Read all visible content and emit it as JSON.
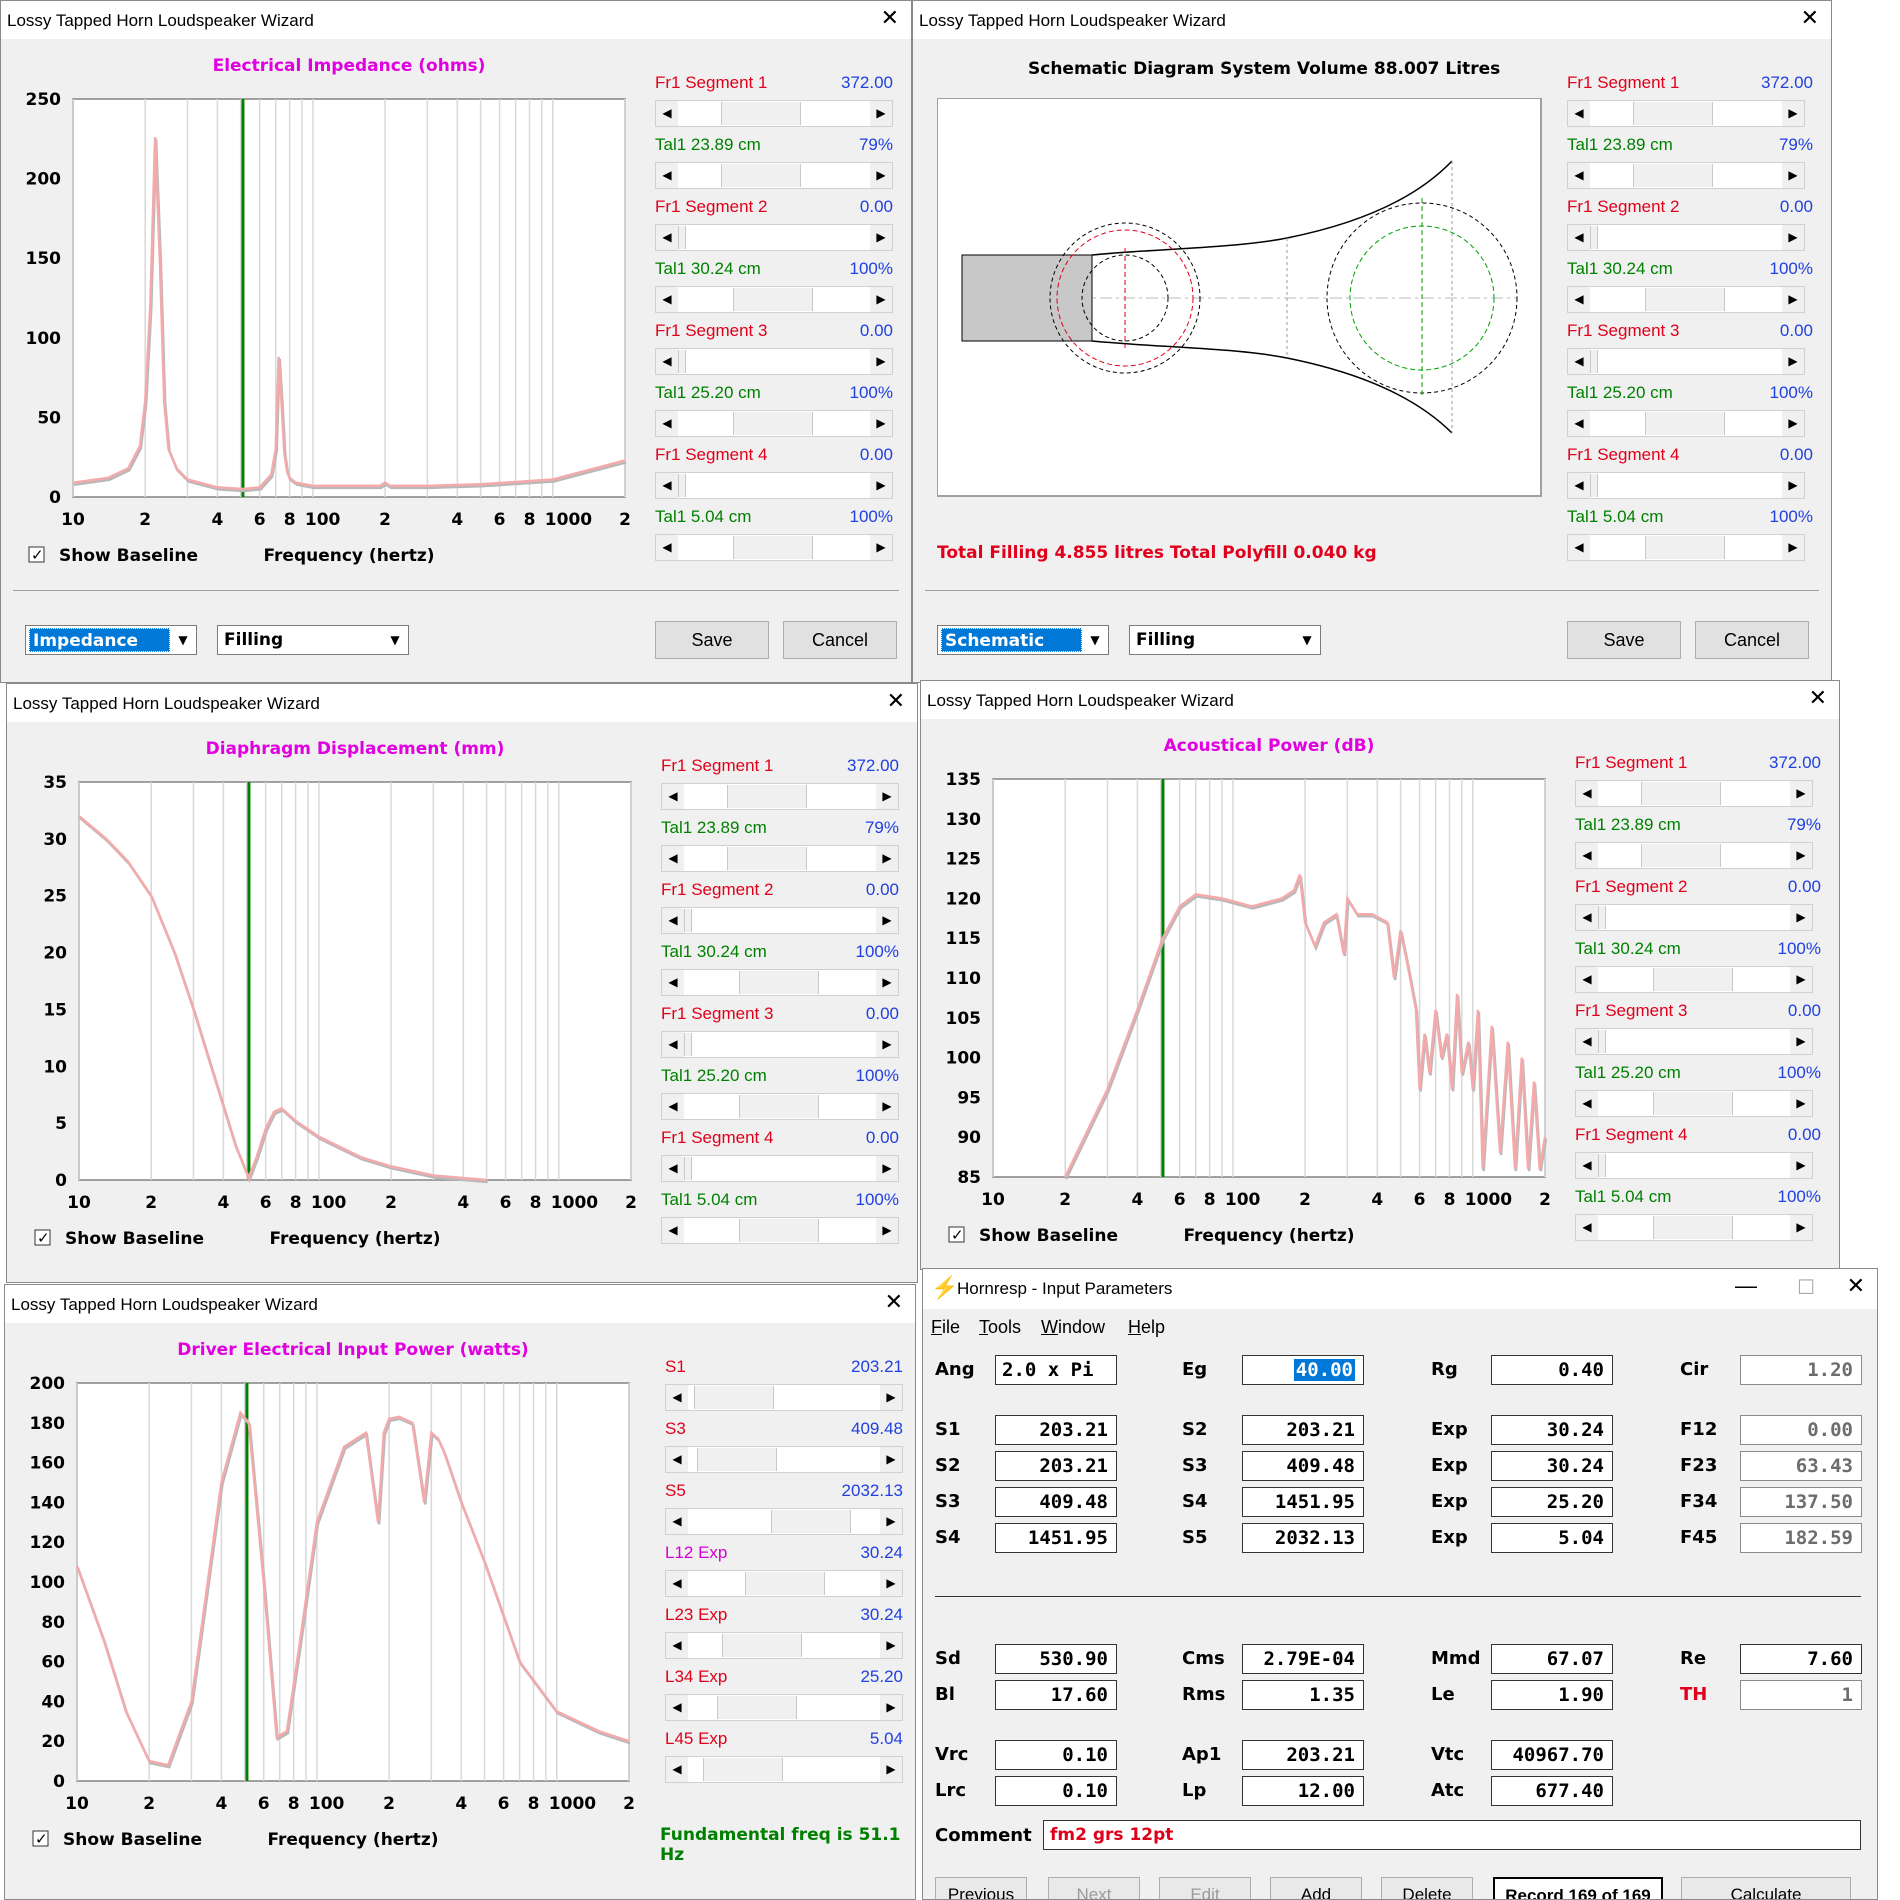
{
  "wizard_title": "Lossy Tapped Horn Loudspeaker Wizard",
  "show_baseline": "Show Baseline",
  "xlabel": "Frequency (hertz)",
  "xticks": [
    "10",
    "2",
    "4",
    "6",
    "8",
    "100",
    "2",
    "4",
    "6",
    "8",
    "1000",
    "2"
  ],
  "save": "Save",
  "cancel": "Cancel",
  "filling": "Filling",
  "segments": [
    {
      "label": "Fr1  Segment 1",
      "value": "372.00",
      "thumb": 0.38
    },
    {
      "label": "Tal1  23.89 cm",
      "value": "79%",
      "thumb": 0.38
    },
    {
      "label": "Fr1  Segment 2",
      "value": "0.00",
      "thumb": 0.0
    },
    {
      "label": "Tal1  30.24 cm",
      "value": "100%",
      "thumb": 0.48
    },
    {
      "label": "Fr1  Segment 3",
      "value": "0.00",
      "thumb": 0.0
    },
    {
      "label": "Tal1  25.20 cm",
      "value": "100%",
      "thumb": 0.48
    },
    {
      "label": "Fr1  Segment 4",
      "value": "0.00",
      "thumb": 0.0
    },
    {
      "label": "Tal1  5.04 cm",
      "value": "100%",
      "thumb": 0.48
    }
  ],
  "impedance": {
    "mode": "Impedance",
    "chart_data": {
      "type": "line",
      "title": "Electrical Impedance (ohms)",
      "xlabel": "Frequency (hertz)",
      "ylim": [
        0,
        250
      ],
      "yticks": [
        250,
        200,
        150,
        100,
        50,
        0
      ],
      "x_scale": "log",
      "xlim": [
        10,
        2000
      ],
      "marker_hz": 51.1,
      "series": [
        {
          "x": [
            10,
            14,
            17,
            19,
            20,
            21,
            22,
            23,
            24,
            25,
            27,
            30,
            40,
            51,
            60,
            67,
            70,
            72,
            74,
            76,
            78,
            80,
            85,
            100,
            150,
            190,
            200,
            210,
            300,
            500,
            1000,
            2000
          ],
          "y": [
            9,
            12,
            18,
            32,
            60,
            120,
            226,
            150,
            60,
            30,
            18,
            11,
            6,
            5,
            6,
            14,
            30,
            88,
            60,
            28,
            16,
            12,
            9,
            7,
            7,
            7,
            9,
            7,
            7,
            8,
            11,
            23
          ]
        }
      ]
    }
  },
  "schematic": {
    "mode": "Schematic",
    "title": "Schematic Diagram   System Volume 88.007 Litres",
    "filling_text": "Total Filling  4.855 litres   Total Polyfill  0.040 kg"
  },
  "displacement": {
    "chart_data": {
      "type": "line",
      "title": "Diaphragm Displacement (mm)",
      "xlabel": "Frequency (hertz)",
      "ylim": [
        0,
        35
      ],
      "yticks": [
        35,
        30,
        25,
        20,
        15,
        10,
        5,
        0
      ],
      "x_scale": "log",
      "xlim": [
        10,
        2000
      ],
      "marker_hz": 51.1,
      "series": [
        {
          "x": [
            10,
            13,
            16,
            20,
            25,
            30,
            38,
            45,
            51,
            55,
            60,
            65,
            70,
            80,
            100,
            150,
            200,
            300,
            500
          ],
          "y": [
            32,
            30,
            28,
            25,
            20,
            15,
            8,
            3,
            0.2,
            2,
            4.5,
            6,
            6.3,
            5.2,
            3.8,
            2,
            1.2,
            0.4,
            0
          ]
        }
      ]
    }
  },
  "acoustic": {
    "chart_data": {
      "type": "line",
      "title": "Acoustical Power (dB)",
      "xlabel": "Frequency (hertz)",
      "ylim": [
        85,
        135
      ],
      "yticks": [
        135,
        130,
        125,
        120,
        115,
        110,
        105,
        100,
        95,
        90,
        85
      ],
      "x_scale": "log",
      "xlim": [
        10,
        2000
      ],
      "marker_hz": 51.1,
      "series": [
        {
          "x": [
            20,
            30,
            40,
            51,
            60,
            70,
            90,
            120,
            160,
            180,
            190,
            200,
            220,
            240,
            270,
            290,
            300,
            330,
            380,
            440,
            470,
            500,
            540,
            580,
            600,
            630,
            660,
            700,
            740,
            780,
            820,
            860,
            900,
            960,
            1000,
            1050,
            1100,
            1200,
            1300,
            1400,
            1500,
            1600,
            1700,
            1800,
            1900,
            2000
          ],
          "y": [
            85,
            96,
            106,
            115,
            119,
            120.5,
            120,
            119,
            120,
            121,
            123,
            117,
            114,
            117,
            118,
            113,
            120,
            118,
            118,
            117,
            110,
            116,
            111,
            106,
            96,
            103,
            98,
            106,
            100,
            103,
            96,
            108,
            98,
            102,
            96,
            106,
            86,
            104,
            88,
            102,
            86,
            100,
            86,
            97,
            86,
            90
          ]
        }
      ]
    }
  },
  "power": {
    "chart_data": {
      "type": "line",
      "title": "Driver Electrical Input Power (watts)",
      "xlabel": "Frequency (hertz)",
      "ylim": [
        0,
        200
      ],
      "yticks": [
        200,
        180,
        160,
        140,
        120,
        100,
        80,
        60,
        40,
        20,
        0
      ],
      "x_scale": "log",
      "xlim": [
        10,
        2000
      ],
      "marker_hz": 51.1,
      "series": [
        {
          "x": [
            10,
            13,
            16,
            20,
            24,
            30,
            40,
            48,
            52,
            60,
            68,
            75,
            85,
            100,
            130,
            160,
            180,
            190,
            200,
            220,
            250,
            280,
            300,
            320,
            340,
            400,
            500,
            700,
            1000,
            1500,
            2000
          ],
          "y": [
            108,
            70,
            35,
            10,
            8,
            40,
            150,
            185,
            180,
            100,
            22,
            25,
            70,
            130,
            168,
            175,
            130,
            175,
            182,
            183,
            180,
            140,
            175,
            172,
            165,
            140,
            110,
            60,
            35,
            25,
            20
          ]
        }
      ]
    },
    "sliders": [
      {
        "label": "S1",
        "value": "203.21",
        "thumb": 0.05,
        "color": "#e0001b"
      },
      {
        "label": "S3",
        "value": "409.48",
        "thumb": 0.08,
        "color": "#e0001b"
      },
      {
        "label": "S5",
        "value": "2032.13",
        "thumb": 0.73,
        "color": "#e0001b"
      },
      {
        "label": "L12 Exp",
        "value": "30.24",
        "thumb": 0.5,
        "color": "#d400d4"
      },
      {
        "label": "L23 Exp",
        "value": "30.24",
        "thumb": 0.3,
        "color": "#e0001b"
      },
      {
        "label": "L34 Exp",
        "value": "25.20",
        "thumb": 0.25,
        "color": "#e0001b"
      },
      {
        "label": "L45 Exp",
        "value": "5.04",
        "thumb": 0.13,
        "color": "#e0001b"
      }
    ],
    "fundamental": "Fundamental freq is 51.1 Hz"
  },
  "hornresp": {
    "title": "Hornresp - Input Parameters",
    "menu": [
      "File",
      "Tools",
      "Window",
      "Help"
    ],
    "rows1": [
      [
        {
          "l": "Ang",
          "v": "2.0 x Pi",
          "left": true
        },
        {
          "l": "Eg",
          "v": "40.00",
          "hl": true
        },
        {
          "l": "Rg",
          "v": "0.40"
        },
        {
          "l": "Cir",
          "v": "1.20",
          "dis": true
        }
      ],
      [
        {
          "l": "S1",
          "v": "203.21"
        },
        {
          "l": "S2",
          "v": "203.21"
        },
        {
          "l": "Exp",
          "v": "30.24"
        },
        {
          "l": "F12",
          "v": "0.00",
          "dis": true
        }
      ],
      [
        {
          "l": "S2",
          "v": "203.21"
        },
        {
          "l": "S3",
          "v": "409.48"
        },
        {
          "l": "Exp",
          "v": "30.24"
        },
        {
          "l": "F23",
          "v": "63.43",
          "dis": true
        }
      ],
      [
        {
          "l": "S3",
          "v": "409.48"
        },
        {
          "l": "S4",
          "v": "1451.95"
        },
        {
          "l": "Exp",
          "v": "25.20"
        },
        {
          "l": "F34",
          "v": "137.50",
          "dis": true
        }
      ],
      [
        {
          "l": "S4",
          "v": "1451.95"
        },
        {
          "l": "S5",
          "v": "2032.13"
        },
        {
          "l": "Exp",
          "v": "5.04"
        },
        {
          "l": "F45",
          "v": "182.59",
          "dis": true
        }
      ]
    ],
    "rows2": [
      [
        {
          "l": "Sd",
          "v": "530.90"
        },
        {
          "l": "Cms",
          "v": "2.79E-04"
        },
        {
          "l": "Mmd",
          "v": "67.07"
        },
        {
          "l": "Re",
          "v": "7.60"
        }
      ],
      [
        {
          "l": "Bl",
          "v": "17.60"
        },
        {
          "l": "Rms",
          "v": "1.35"
        },
        {
          "l": "Le",
          "v": "1.90"
        },
        {
          "l": "TH",
          "v": "1",
          "red": true,
          "dis": true
        }
      ],
      [
        {
          "l": "Vrc",
          "v": "0.10"
        },
        {
          "l": "Ap1",
          "v": "203.21"
        },
        {
          "l": "Vtc",
          "v": "40967.70"
        }
      ],
      [
        {
          "l": "Lrc",
          "v": "0.10"
        },
        {
          "l": "Lp",
          "v": "12.00"
        },
        {
          "l": "Atc",
          "v": "677.40"
        }
      ]
    ],
    "comment_label": "Comment",
    "comment": "fm2 grs 12pt",
    "buttons": [
      {
        "t": "Previous",
        "dis": false
      },
      {
        "t": "Next",
        "dis": true
      },
      {
        "t": "Edit",
        "dis": true
      },
      {
        "t": "Add",
        "dis": false
      },
      {
        "t": "Delete",
        "dis": false
      },
      {
        "t": "Record 169 of 169",
        "rec": true
      },
      {
        "t": "Calculate",
        "dis": false
      }
    ]
  }
}
